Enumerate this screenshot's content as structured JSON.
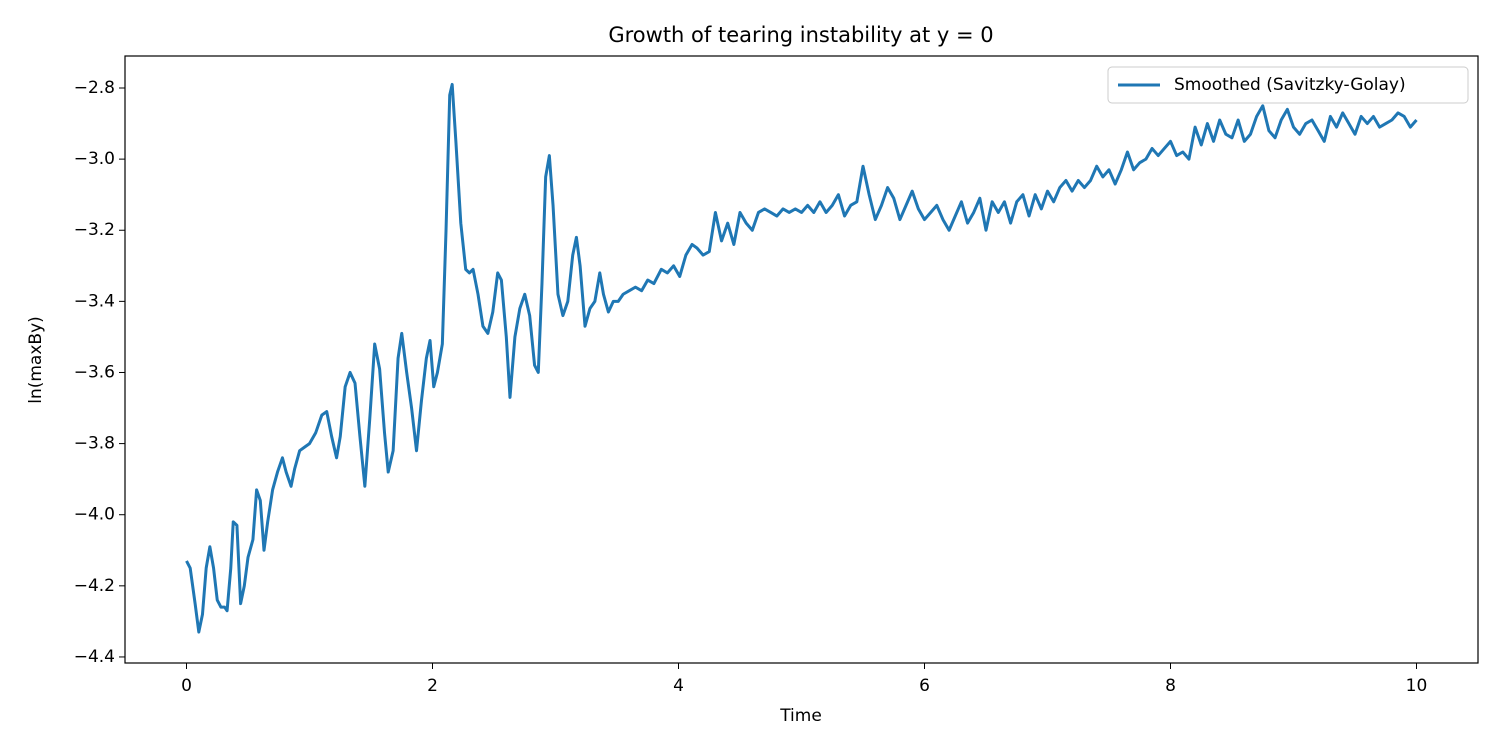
{
  "chart_data": {
    "type": "line",
    "title": "Growth of tearing instability at y = 0",
    "x_label": "Time",
    "y_label": "ln(maxBy)",
    "legend": "upper right",
    "xlim": [
      -0.5,
      10.5
    ],
    "ylim": [
      -4.417,
      -2.71
    ],
    "xticks": [
      0,
      2,
      4,
      6,
      8,
      10
    ],
    "yticks": [
      {
        "value": -4.4,
        "label": "−4.4"
      },
      {
        "value": -4.2,
        "label": "−4.2"
      },
      {
        "value": -4.0,
        "label": "−4.0"
      },
      {
        "value": -3.8,
        "label": "−3.8"
      },
      {
        "value": -3.6,
        "label": "−3.6"
      },
      {
        "value": -3.4,
        "label": "−3.4"
      },
      {
        "value": -3.2,
        "label": "−3.2"
      },
      {
        "value": -3.0,
        "label": "−3.0"
      },
      {
        "value": -2.8,
        "label": "−2.8"
      }
    ],
    "x": [
      0,
      0.03,
      0.07,
      0.1,
      0.13,
      0.16,
      0.19,
      0.22,
      0.25,
      0.28,
      0.31,
      0.33,
      0.36,
      0.38,
      0.41,
      0.44,
      0.47,
      0.5,
      0.54,
      0.57,
      0.6,
      0.63,
      0.66,
      0.7,
      0.74,
      0.78,
      0.81,
      0.85,
      0.88,
      0.92,
      0.96,
      1.0,
      1.05,
      1.1,
      1.14,
      1.18,
      1.22,
      1.25,
      1.29,
      1.33,
      1.37,
      1.41,
      1.45,
      1.49,
      1.53,
      1.57,
      1.61,
      1.64,
      1.68,
      1.72,
      1.75,
      1.79,
      1.83,
      1.87,
      1.91,
      1.95,
      1.98,
      2.01,
      2.04,
      2.08,
      2.11,
      2.14,
      2.16,
      2.19,
      2.23,
      2.27,
      2.3,
      2.33,
      2.37,
      2.41,
      2.45,
      2.49,
      2.53,
      2.56,
      2.6,
      2.63,
      2.67,
      2.71,
      2.75,
      2.79,
      2.83,
      2.86,
      2.89,
      2.92,
      2.95,
      2.98,
      3.02,
      3.06,
      3.1,
      3.14,
      3.17,
      3.2,
      3.24,
      3.28,
      3.32,
      3.36,
      3.39,
      3.43,
      3.47,
      3.51,
      3.55,
      3.6,
      3.65,
      3.7,
      3.75,
      3.8,
      3.86,
      3.91,
      3.96,
      4.01,
      4.06,
      4.11,
      4.15,
      4.2,
      4.25,
      4.3,
      4.35,
      4.4,
      4.45,
      4.5,
      4.55,
      4.6,
      4.65,
      4.7,
      4.75,
      4.8,
      4.85,
      4.9,
      4.95,
      5.0,
      5.05,
      5.1,
      5.15,
      5.2,
      5.25,
      5.3,
      5.35,
      5.4,
      5.45,
      5.5,
      5.55,
      5.6,
      5.65,
      5.7,
      5.75,
      5.8,
      5.85,
      5.9,
      5.95,
      6.0,
      6.05,
      6.1,
      6.15,
      6.2,
      6.25,
      6.3,
      6.35,
      6.4,
      6.45,
      6.5,
      6.55,
      6.6,
      6.65,
      6.7,
      6.75,
      6.8,
      6.85,
      6.9,
      6.95,
      7.0,
      7.05,
      7.1,
      7.15,
      7.2,
      7.25,
      7.3,
      7.35,
      7.4,
      7.45,
      7.5,
      7.55,
      7.6,
      7.65,
      7.7,
      7.75,
      7.8,
      7.85,
      7.9,
      7.95,
      8.0,
      8.05,
      8.1,
      8.15,
      8.2,
      8.25,
      8.3,
      8.35,
      8.4,
      8.45,
      8.5,
      8.55,
      8.6,
      8.65,
      8.7,
      8.75,
      8.8,
      8.85,
      8.9,
      8.95,
      9.0,
      9.05,
      9.1,
      9.15,
      9.2,
      9.25,
      9.3,
      9.35,
      9.4,
      9.45,
      9.5,
      9.55,
      9.6,
      9.65,
      9.7,
      9.75,
      9.8,
      9.85,
      9.9,
      9.95,
      10.0
    ],
    "series": [
      {
        "name": "Smoothed (Savitzky-Golay)",
        "color": "#1f77b4",
        "values": [
          -4.13,
          -4.15,
          -4.25,
          -4.33,
          -4.28,
          -4.15,
          -4.09,
          -4.15,
          -4.24,
          -4.26,
          -4.26,
          -4.27,
          -4.15,
          -4.02,
          -4.03,
          -4.25,
          -4.2,
          -4.12,
          -4.07,
          -3.93,
          -3.96,
          -4.1,
          -4.02,
          -3.93,
          -3.88,
          -3.84,
          -3.88,
          -3.92,
          -3.87,
          -3.82,
          -3.81,
          -3.8,
          -3.77,
          -3.72,
          -3.71,
          -3.78,
          -3.84,
          -3.78,
          -3.64,
          -3.6,
          -3.63,
          -3.78,
          -3.92,
          -3.73,
          -3.52,
          -3.59,
          -3.77,
          -3.88,
          -3.82,
          -3.56,
          -3.49,
          -3.6,
          -3.7,
          -3.82,
          -3.68,
          -3.56,
          -3.51,
          -3.64,
          -3.6,
          -3.52,
          -3.2,
          -2.82,
          -2.79,
          -2.95,
          -3.18,
          -3.31,
          -3.32,
          -3.31,
          -3.38,
          -3.47,
          -3.49,
          -3.43,
          -3.32,
          -3.34,
          -3.5,
          -3.67,
          -3.5,
          -3.42,
          -3.38,
          -3.44,
          -3.58,
          -3.6,
          -3.35,
          -3.05,
          -2.99,
          -3.13,
          -3.38,
          -3.44,
          -3.4,
          -3.27,
          -3.22,
          -3.3,
          -3.47,
          -3.42,
          -3.4,
          -3.32,
          -3.38,
          -3.43,
          -3.4,
          -3.4,
          -3.38,
          -3.37,
          -3.36,
          -3.37,
          -3.34,
          -3.35,
          -3.31,
          -3.32,
          -3.3,
          -3.33,
          -3.27,
          -3.24,
          -3.25,
          -3.27,
          -3.26,
          -3.15,
          -3.23,
          -3.18,
          -3.24,
          -3.15,
          -3.18,
          -3.2,
          -3.15,
          -3.14,
          -3.15,
          -3.16,
          -3.14,
          -3.15,
          -3.14,
          -3.15,
          -3.13,
          -3.15,
          -3.12,
          -3.15,
          -3.13,
          -3.1,
          -3.16,
          -3.13,
          -3.12,
          -3.02,
          -3.1,
          -3.17,
          -3.13,
          -3.08,
          -3.11,
          -3.17,
          -3.13,
          -3.09,
          -3.14,
          -3.17,
          -3.15,
          -3.13,
          -3.17,
          -3.2,
          -3.16,
          -3.12,
          -3.18,
          -3.15,
          -3.11,
          -3.2,
          -3.12,
          -3.15,
          -3.12,
          -3.18,
          -3.12,
          -3.1,
          -3.16,
          -3.1,
          -3.14,
          -3.09,
          -3.12,
          -3.08,
          -3.06,
          -3.09,
          -3.06,
          -3.08,
          -3.06,
          -3.02,
          -3.05,
          -3.03,
          -3.07,
          -3.03,
          -2.98,
          -3.03,
          -3.01,
          -3.0,
          -2.97,
          -2.99,
          -2.97,
          -2.95,
          -2.99,
          -2.98,
          -3.0,
          -2.91,
          -2.96,
          -2.9,
          -2.95,
          -2.89,
          -2.93,
          -2.94,
          -2.89,
          -2.95,
          -2.93,
          -2.88,
          -2.85,
          -2.92,
          -2.94,
          -2.89,
          -2.86,
          -2.91,
          -2.93,
          -2.9,
          -2.89,
          -2.92,
          -2.95,
          -2.88,
          -2.91,
          -2.87,
          -2.9,
          -2.93,
          -2.88,
          -2.9,
          -2.88,
          -2.91,
          -2.9,
          -2.89,
          -2.87,
          -2.88,
          -2.91,
          -2.89
        ]
      }
    ]
  }
}
